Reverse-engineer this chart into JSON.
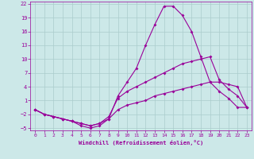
{
  "xlabel": "Windchill (Refroidissement éolien,°C)",
  "bg_color": "#cce8e8",
  "grid_color": "#aacccc",
  "line_color": "#990099",
  "line1_x": [
    0,
    1,
    2,
    3,
    4,
    5,
    6,
    7,
    8,
    9,
    10,
    11,
    12,
    13,
    14,
    15,
    16,
    17,
    18,
    19,
    20,
    21,
    22,
    23
  ],
  "line1_y": [
    -1,
    -2,
    -2.5,
    -3,
    -3.5,
    -4.5,
    -5,
    -4.5,
    -3,
    2,
    5,
    8,
    13,
    17.5,
    21.5,
    21.5,
    19.5,
    16,
    10.5,
    5,
    3,
    1.5,
    -0.5,
    -0.5
  ],
  "line2_x": [
    0,
    1,
    2,
    3,
    4,
    5,
    6,
    7,
    8,
    9,
    10,
    11,
    12,
    13,
    14,
    15,
    16,
    17,
    18,
    19,
    20,
    21,
    22,
    23
  ],
  "line2_y": [
    -1,
    -2,
    -2.5,
    -3,
    -3.5,
    -4,
    -4.5,
    -4,
    -2.5,
    1.5,
    3,
    4,
    5,
    6,
    7,
    8,
    9,
    9.5,
    10,
    10.5,
    5.5,
    3.5,
    2,
    -0.5
  ],
  "line3_x": [
    0,
    1,
    2,
    3,
    4,
    5,
    6,
    7,
    8,
    9,
    10,
    11,
    12,
    13,
    14,
    15,
    16,
    17,
    18,
    19,
    20,
    21,
    22,
    23
  ],
  "line3_y": [
    -1,
    -2,
    -2.5,
    -3,
    -3.5,
    -4,
    -4.5,
    -4,
    -3.0,
    -1,
    0,
    0.5,
    1,
    2,
    2.5,
    3,
    3.5,
    4,
    4.5,
    5,
    5,
    4.5,
    4,
    -0.5
  ],
  "xlim": [
    -0.5,
    23.5
  ],
  "ylim": [
    -5.5,
    22.5
  ],
  "yticks": [
    -5,
    -2,
    1,
    4,
    7,
    10,
    13,
    16,
    19,
    22
  ],
  "xticks": [
    0,
    1,
    2,
    3,
    4,
    5,
    6,
    7,
    8,
    9,
    10,
    11,
    12,
    13,
    14,
    15,
    16,
    17,
    18,
    19,
    20,
    21,
    22,
    23
  ]
}
